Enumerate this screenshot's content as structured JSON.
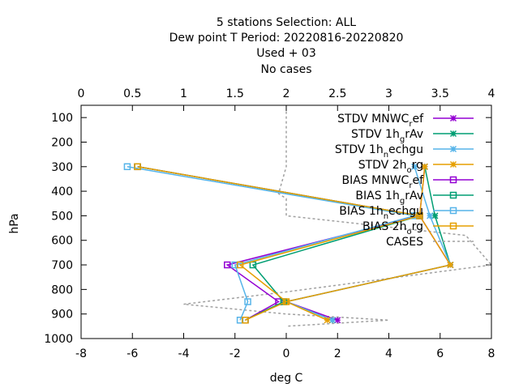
{
  "chart_data": {
    "type": "line",
    "title_lines": [
      "5 stations Selection: ALL",
      "Dew point T  Period: 20220816-20220820",
      "Used   + 03",
      "No cases"
    ],
    "xlabel": "deg C",
    "ylabel": "hPa",
    "x_bottom": {
      "range": [
        -8,
        8
      ],
      "ticks": [
        -8,
        -6,
        -4,
        -2,
        0,
        2,
        4,
        6,
        8
      ]
    },
    "x_top": {
      "range": [
        0,
        4
      ],
      "ticks": [
        "0",
        "0.5",
        "1",
        "1.5",
        "2",
        "2.5",
        "3",
        "3.5",
        "4"
      ]
    },
    "y": {
      "range": [
        50,
        1000
      ],
      "reversed": true,
      "ticks": [
        100,
        200,
        300,
        400,
        500,
        600,
        700,
        800,
        900,
        1000
      ]
    },
    "levels": [
      300,
      500,
      700,
      850,
      925
    ],
    "legend_position": "top-right",
    "series": [
      {
        "legend": "STDV MNWC_ref",
        "axis": "top",
        "marker": "x-star",
        "color": "#9400d3",
        "x": [
          3.35,
          3.3,
          3.6,
          2.0,
          2.5
        ]
      },
      {
        "legend": "STDV 1h_grAv",
        "axis": "top",
        "marker": "x-star",
        "color": "#009e73",
        "x": [
          3.35,
          3.45,
          3.6,
          2.0,
          2.45
        ]
      },
      {
        "legend": "STDV 1h_nechgu",
        "axis": "top",
        "marker": "x-star",
        "color": "#56b4e9",
        "x": [
          3.25,
          3.4,
          3.6,
          2.0,
          2.45
        ]
      },
      {
        "legend": "STDV 2h_org",
        "axis": "top",
        "marker": "x-star",
        "color": "#e69f00",
        "x": [
          3.35,
          3.3,
          3.6,
          2.0,
          2.4
        ]
      },
      {
        "legend": "BIAS MNWC_ref",
        "axis": "bottom",
        "marker": "box",
        "color": "#9400d3",
        "x": [
          -5.8,
          5.2,
          -2.3,
          -0.3,
          -1.6
        ]
      },
      {
        "legend": "BIAS 1h_grAv",
        "axis": "bottom",
        "marker": "box",
        "color": "#009e73",
        "x": [
          -5.8,
          5.2,
          -1.3,
          -0.1,
          -1.6
        ]
      },
      {
        "legend": "BIAS 1h_nechgu",
        "axis": "bottom",
        "marker": "box",
        "color": "#56b4e9",
        "x": [
          -6.2,
          5.0,
          -2.0,
          -1.5,
          -1.8
        ]
      },
      {
        "legend": "BIAS 2h_org",
        "axis": "bottom",
        "marker": "box",
        "color": "#e69f00",
        "x": [
          -5.8,
          5.2,
          -1.8,
          0.0,
          -1.6
        ]
      },
      {
        "legend": "CASES",
        "axis": "none",
        "marker": "none",
        "color": "#a0a0a0",
        "dashed": true,
        "x": []
      }
    ],
    "cases_profile": {
      "axis": "bottom",
      "points": [
        [
          0,
          75
        ],
        [
          0,
          200
        ],
        [
          0,
          300
        ],
        [
          -0.3,
          410
        ],
        [
          0,
          430
        ],
        [
          0,
          500
        ],
        [
          7.0,
          580
        ],
        [
          8.0,
          700
        ],
        [
          0,
          810
        ],
        [
          -4.0,
          860
        ],
        [
          0,
          900
        ],
        [
          4.0,
          925
        ],
        [
          0,
          950
        ]
      ]
    }
  }
}
